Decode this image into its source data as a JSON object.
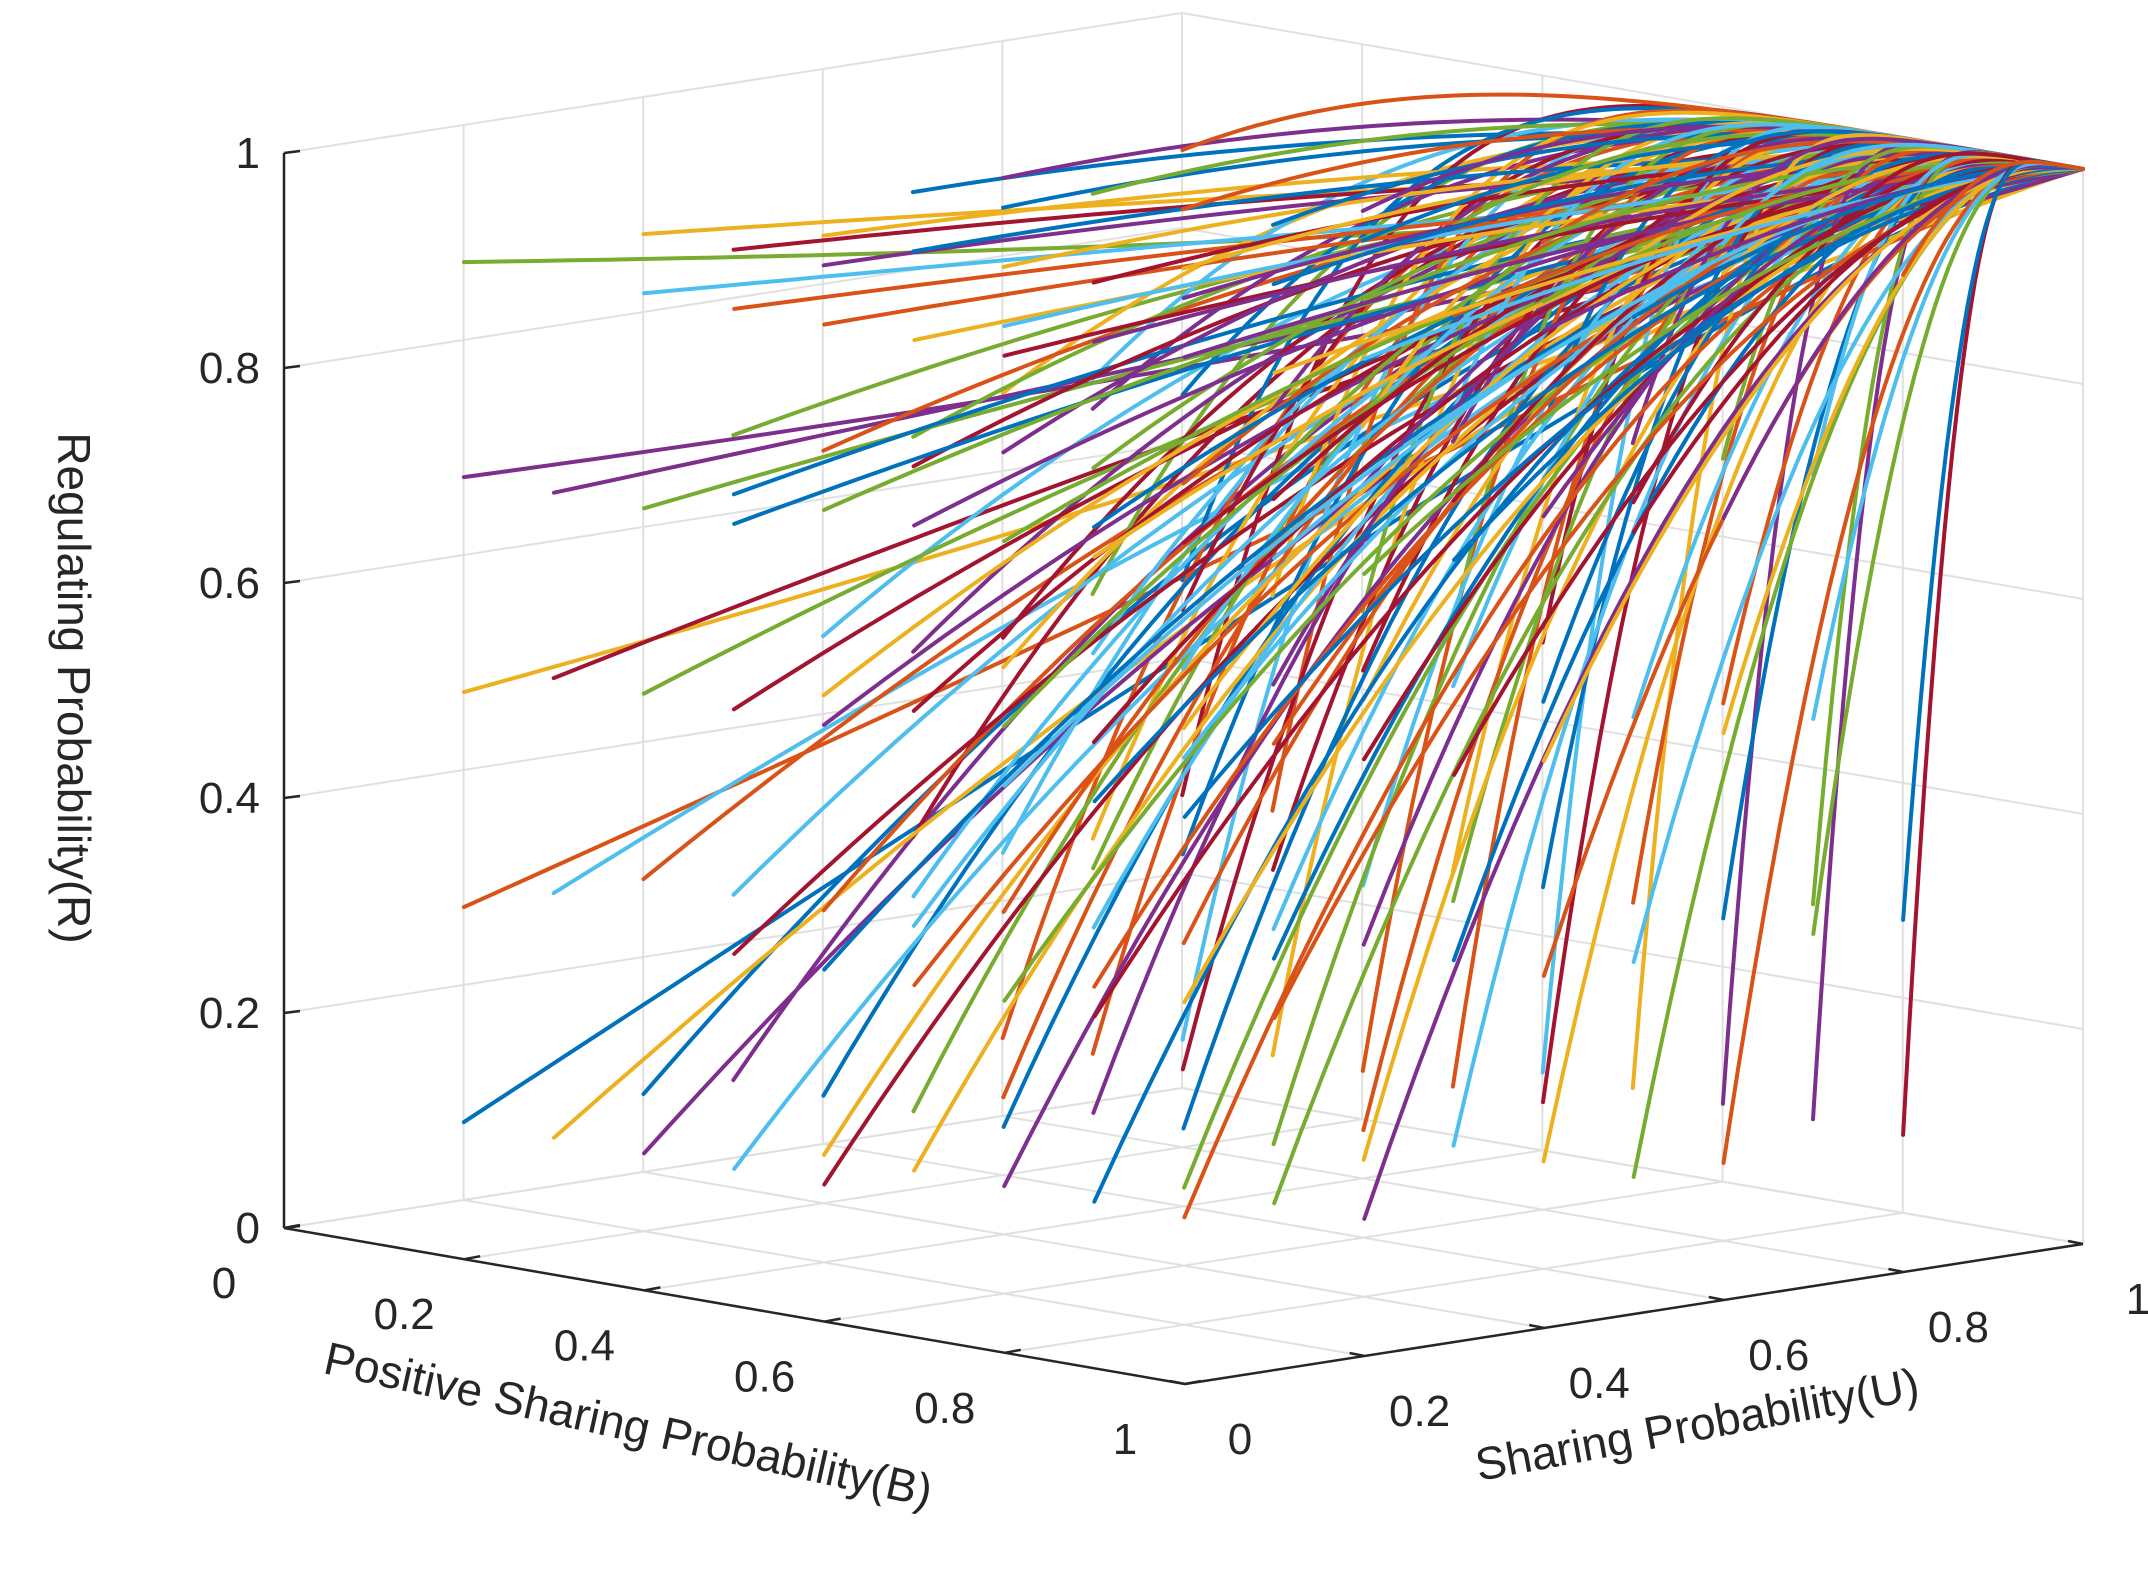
{
  "chart_data": {
    "type": "line",
    "subtype": "3d-trajectories",
    "title": "",
    "zlabel": "Regulating Probability(R)",
    "xlabel": "Positive Sharing Probability(B)",
    "ylabel": "Sharing Probability(U)",
    "xlim": [
      0,
      1
    ],
    "ylim": [
      0,
      1
    ],
    "zlim": [
      0,
      1
    ],
    "x_ticks": [
      "0",
      "0.2",
      "0.4",
      "0.6",
      "0.8",
      "1"
    ],
    "y_ticks": [
      "0",
      "0.2",
      "0.4",
      "0.6",
      "0.8",
      "1"
    ],
    "z_ticks": [
      "0",
      "0.2",
      "0.4",
      "0.6",
      "0.8",
      "1"
    ],
    "grid": true,
    "converges_to": [
      1,
      1,
      1
    ],
    "initial_grid": {
      "B": [
        0.1,
        0.2,
        0.3,
        0.4,
        0.5,
        0.6,
        0.7,
        0.8,
        0.9
      ],
      "U": [
        0.1,
        0.2,
        0.3,
        0.4,
        0.5,
        0.6,
        0.7,
        0.8,
        0.9
      ],
      "R": [
        0.1,
        0.3,
        0.5,
        0.7,
        0.9
      ]
    },
    "colors": [
      "#0072BD",
      "#D95319",
      "#EDB120",
      "#7E2F8E",
      "#77AC30",
      "#4DBEEE",
      "#A2142F"
    ]
  }
}
